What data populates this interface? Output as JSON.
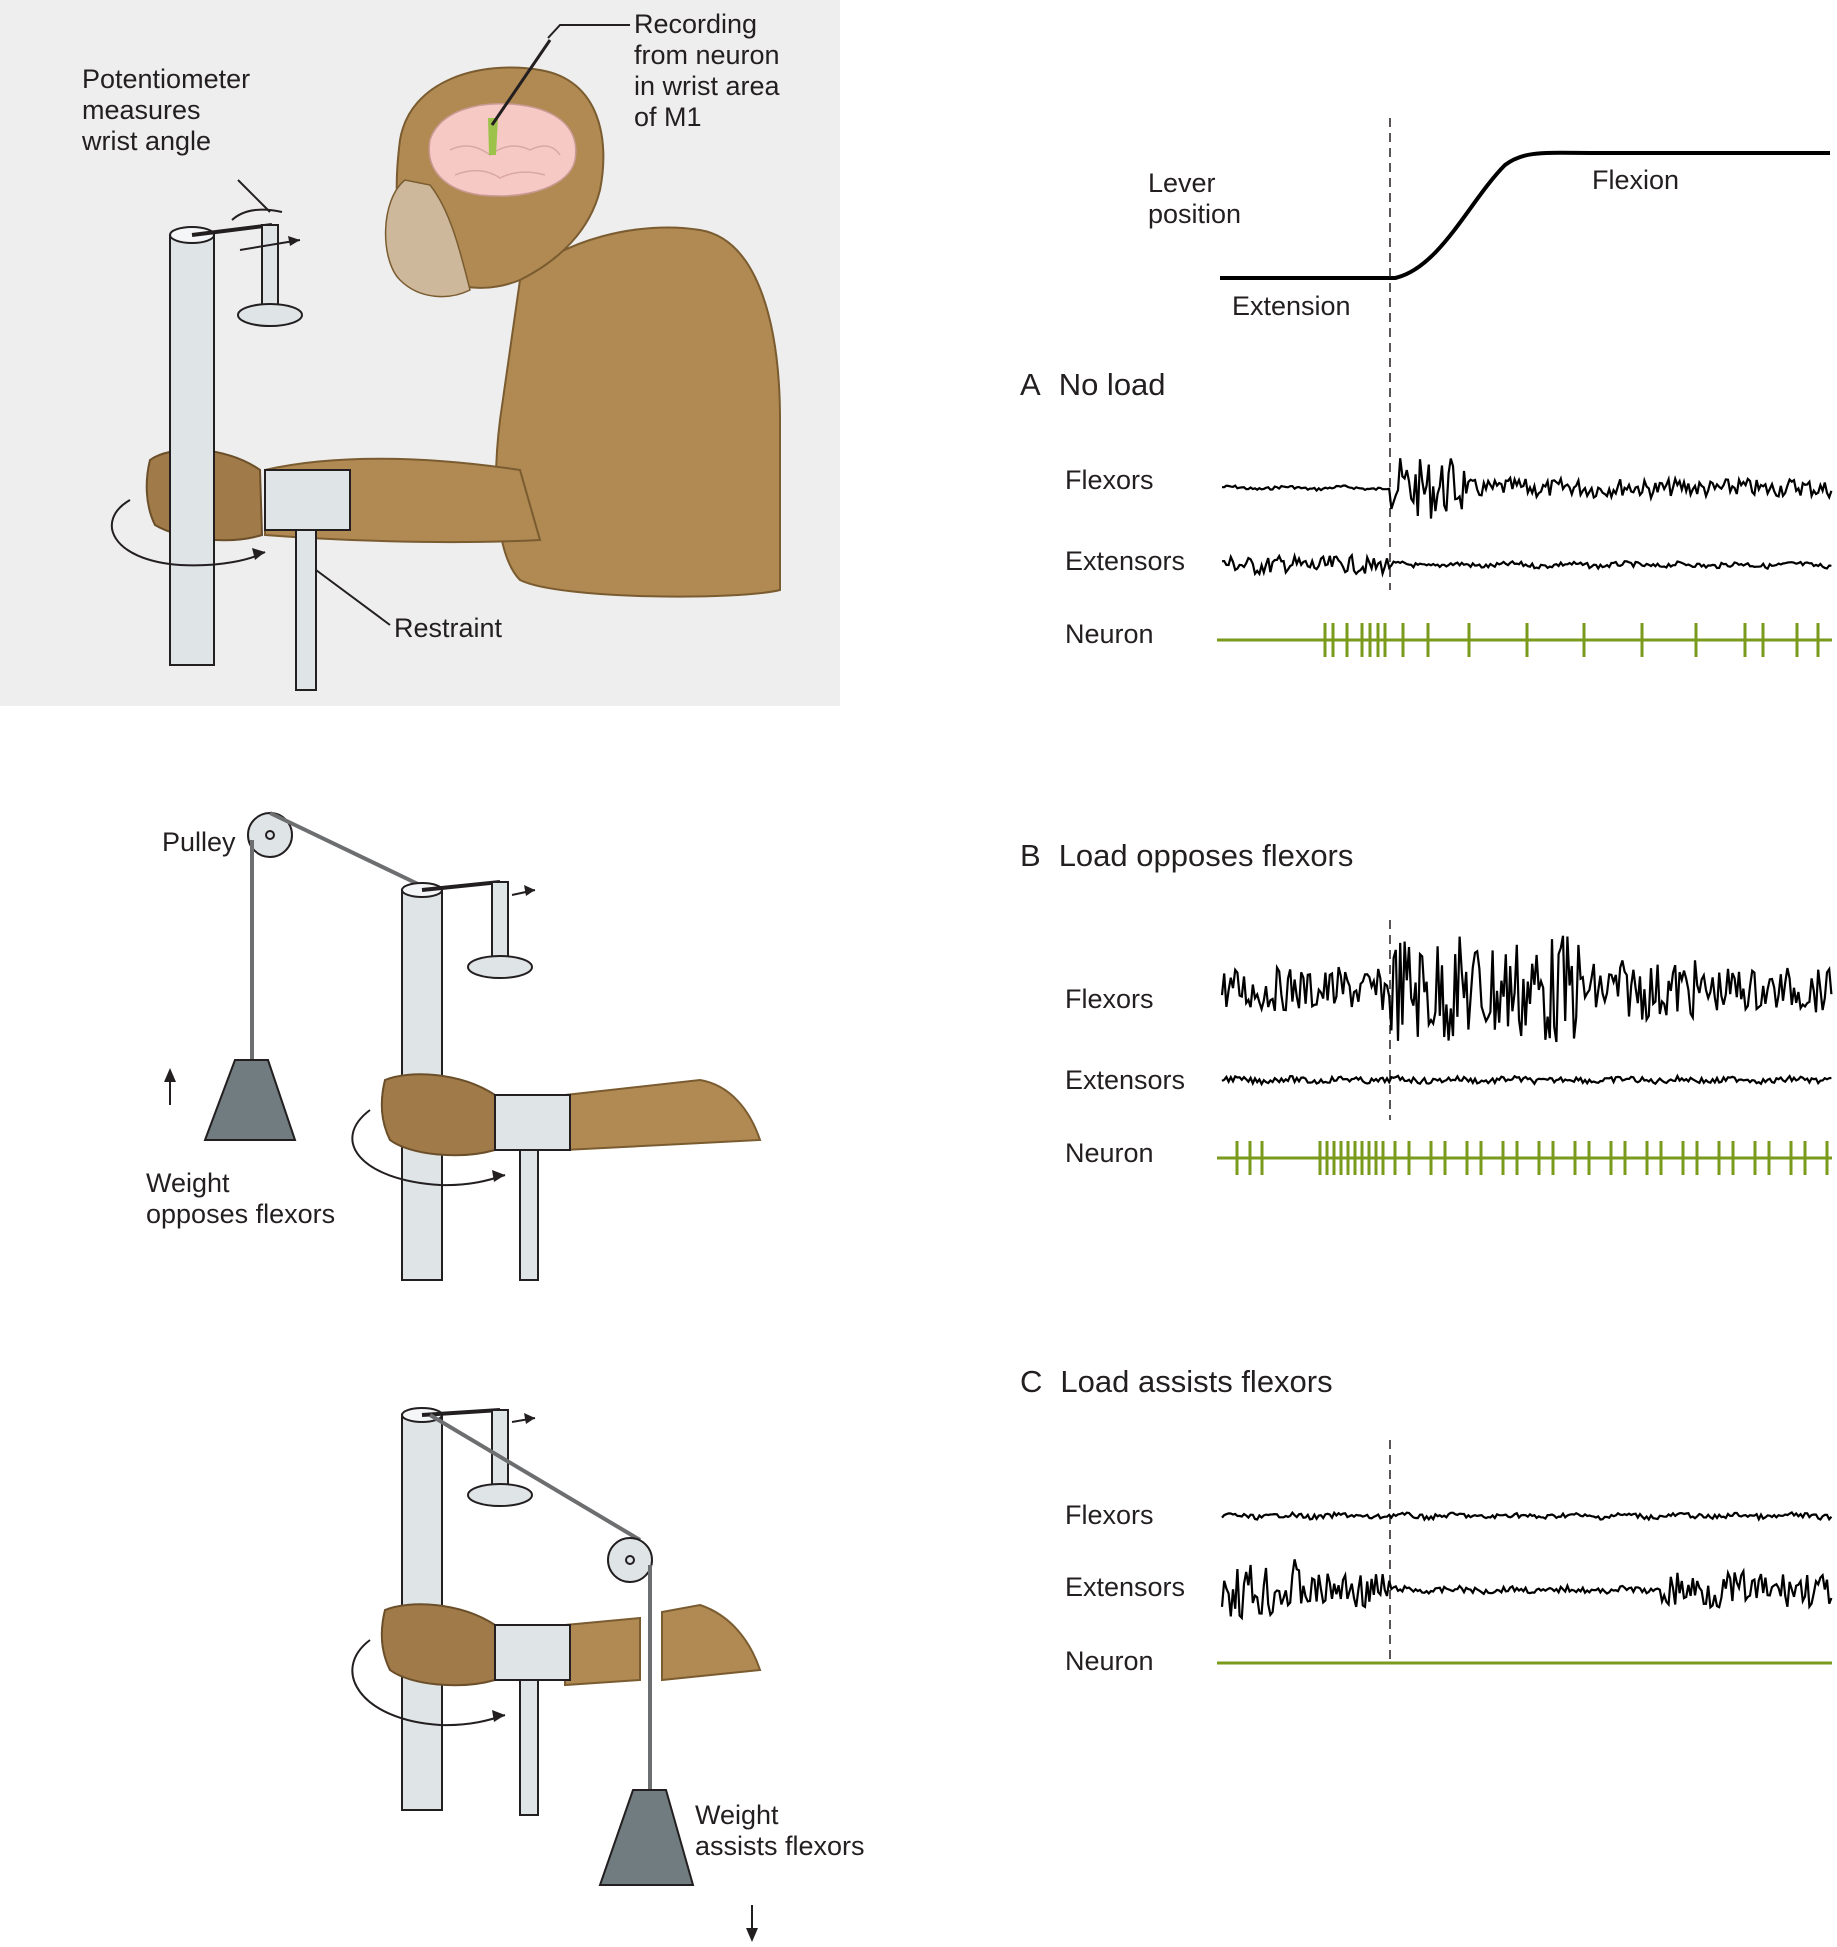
{
  "setup": {
    "potentiometer_label": [
      "Potentiometer",
      "measures",
      "wrist angle"
    ],
    "recording_label": [
      "Recording",
      "from neuron",
      "in wrist area",
      "of M1"
    ],
    "restraint_label": "Restraint",
    "pulley_label": "Pulley",
    "weight_opposes_label": [
      "Weight",
      "opposes flexors"
    ],
    "weight_assists_label": [
      "Weight",
      "assists flexors"
    ]
  },
  "lever": {
    "label": [
      "Lever",
      "position"
    ],
    "flexion_label": "Flexion",
    "extension_label": "Extension"
  },
  "panels": [
    {
      "letter": "A",
      "title": "No load",
      "traces": [
        "Flexors",
        "Extensors",
        "Neuron"
      ]
    },
    {
      "letter": "B",
      "title": "Load opposes flexors",
      "traces": [
        "Flexors",
        "Extensors",
        "Neuron"
      ]
    },
    {
      "letter": "C",
      "title": "Load assists flexors",
      "traces": [
        "Flexors",
        "Extensors",
        "Neuron"
      ]
    }
  ],
  "colors": {
    "neuron_trace": "#7a9a1c",
    "emg_trace": "#000000",
    "setup_background": "#eeeeee",
    "fur": "#b08a52",
    "brain": "#f7c9c4",
    "metal": "#dfe4e6",
    "weight": "#707c7f"
  }
}
